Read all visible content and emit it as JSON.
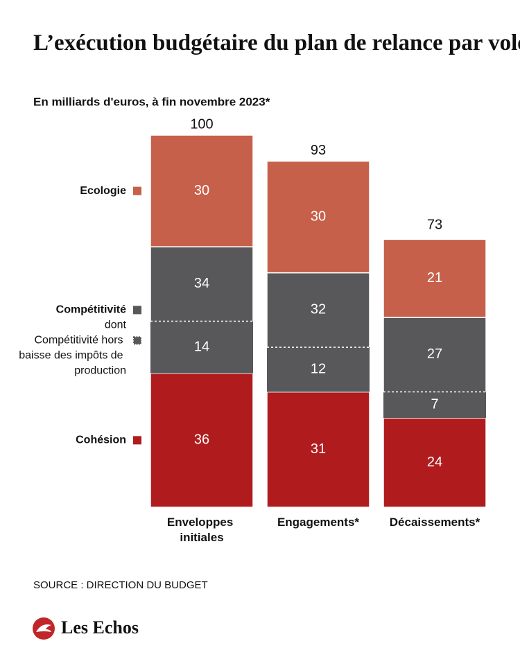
{
  "chart_data": {
    "type": "stacked-bar",
    "title": "L’exécution budgétaire du plan de relance par volets",
    "subtitle": "En milliards d'euros, à fin novembre 2023*",
    "categories": [
      "Enveloppes initiales",
      "Engagements*",
      "Décaissements*"
    ],
    "series": [
      {
        "name": "Cohésion",
        "color": "#b01c1e",
        "values": [
          36,
          31,
          24
        ]
      },
      {
        "name": "Compétitivité",
        "color": "#58585a",
        "values": [
          34,
          32,
          27
        ]
      },
      {
        "name": "Ecologie",
        "color": "#c7604a",
        "values": [
          30,
          30,
          21
        ]
      }
    ],
    "subset": {
      "prefix": "dont",
      "name": "Compétitivité hors baisse des impôts de production",
      "of": 1,
      "values": [
        14,
        12,
        7
      ]
    },
    "totals": [
      100,
      93,
      73
    ],
    "source": "SOURCE : DIRECTION DU BUDGET",
    "brand": "Les Echos"
  }
}
